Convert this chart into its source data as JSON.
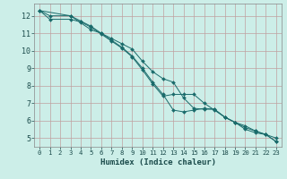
{
  "xlabel": "Humidex (Indice chaleur)",
  "background_color": "#cceee8",
  "grid_color": "#c0a0a0",
  "line_color": "#1a6b6b",
  "xlim": [
    -0.5,
    23.5
  ],
  "ylim": [
    4.5,
    12.7
  ],
  "xticks": [
    0,
    1,
    2,
    3,
    4,
    5,
    6,
    7,
    8,
    9,
    10,
    11,
    12,
    13,
    14,
    15,
    16,
    17,
    18,
    19,
    20,
    21,
    22,
    23
  ],
  "yticks": [
    5,
    6,
    7,
    8,
    9,
    10,
    11,
    12
  ],
  "line1_x": [
    0,
    1,
    3,
    4,
    5,
    6,
    7,
    8,
    9,
    10,
    11,
    12,
    13,
    14,
    15,
    16,
    17,
    18,
    19,
    20,
    21,
    22,
    23
  ],
  "line1_y": [
    12.3,
    12.0,
    12.0,
    11.6,
    11.2,
    11.0,
    10.7,
    10.4,
    10.1,
    9.4,
    8.8,
    8.4,
    8.2,
    7.3,
    6.7,
    6.65,
    6.65,
    6.2,
    5.9,
    5.5,
    5.3,
    5.2,
    5.0
  ],
  "line2_x": [
    0,
    3,
    4,
    5,
    6,
    7,
    8,
    9,
    10,
    11,
    12,
    13,
    14,
    15,
    16,
    17,
    18,
    19,
    20,
    21,
    22,
    23
  ],
  "line2_y": [
    12.3,
    12.0,
    11.7,
    11.4,
    11.0,
    10.6,
    10.2,
    9.7,
    9.0,
    8.2,
    7.5,
    6.6,
    6.5,
    6.6,
    6.7,
    6.65,
    6.2,
    5.9,
    5.7,
    5.4,
    5.2,
    4.8
  ],
  "line3_x": [
    0,
    1,
    3,
    4,
    5,
    6,
    7,
    8,
    9,
    10,
    11,
    12,
    13,
    14,
    15,
    16,
    17,
    18,
    19,
    20,
    21,
    22,
    23
  ],
  "line3_y": [
    12.3,
    11.8,
    11.8,
    11.65,
    11.35,
    10.95,
    10.55,
    10.15,
    9.65,
    8.9,
    8.1,
    7.4,
    7.5,
    7.5,
    7.5,
    7.0,
    6.6,
    6.2,
    5.9,
    5.6,
    5.4,
    5.2,
    4.8
  ]
}
